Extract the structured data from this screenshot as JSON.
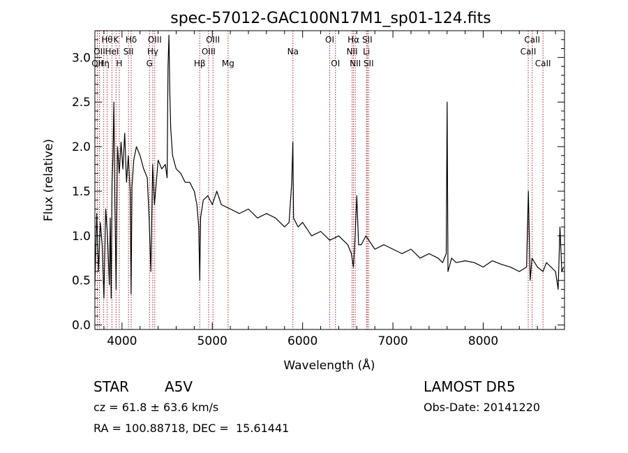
{
  "chart_data": {
    "type": "line",
    "title": "spec-57012-GAC100N17M1_sp01-124.fits",
    "xlabel": "Wavelength (Å)",
    "ylabel": "Flux (relative)",
    "xlim": [
      3700,
      8900
    ],
    "ylim": [
      -0.05,
      3.3
    ],
    "xticks": [
      4000,
      5000,
      6000,
      7000,
      8000
    ],
    "xtick_labels": [
      "4000",
      "5000",
      "6000",
      "7000",
      "8000"
    ],
    "yticks": [
      0.0,
      0.5,
      1.0,
      1.5,
      2.0,
      2.5,
      3.0
    ],
    "ytick_labels": [
      "0.0",
      "0.5",
      "1.0",
      "1.5",
      "2.0",
      "2.5",
      "3.0"
    ],
    "grid": false,
    "series": [
      {
        "color": "#000000",
        "x": [
          3700,
          3720,
          3740,
          3760,
          3780,
          3800,
          3820,
          3840,
          3860,
          3870,
          3880,
          3890,
          3900,
          3910,
          3920,
          3935,
          3950,
          3970,
          3990,
          4010,
          4030,
          4050,
          4070,
          4090,
          4101,
          4110,
          4130,
          4160,
          4200,
          4240,
          4280,
          4300,
          4320,
          4340,
          4360,
          4400,
          4440,
          4480,
          4500,
          4510,
          4520,
          4530,
          4540,
          4560,
          4600,
          4650,
          4700,
          4750,
          4800,
          4830,
          4850,
          4861,
          4870,
          4900,
          4950,
          5000,
          5050,
          5100,
          5200,
          5300,
          5400,
          5500,
          5600,
          5700,
          5800,
          5850,
          5880,
          5892,
          5900,
          5950,
          6000,
          6100,
          6200,
          6300,
          6400,
          6500,
          6540,
          6563,
          6580,
          6600,
          6620,
          6650,
          6700,
          6800,
          6900,
          7000,
          7100,
          7200,
          7300,
          7400,
          7500,
          7550,
          7590,
          7600,
          7610,
          7650,
          7700,
          7800,
          7900,
          8000,
          8100,
          8200,
          8300,
          8400,
          8480,
          8500,
          8520,
          8540,
          8600,
          8662,
          8700,
          8750,
          8800,
          8830,
          8850,
          8870,
          8890
        ],
        "y": [
          0.45,
          1.25,
          0.6,
          1.15,
          0.9,
          0.3,
          1.3,
          1.0,
          0.45,
          1.2,
          0.3,
          1.6,
          1.9,
          2.5,
          1.45,
          0.4,
          2.0,
          1.7,
          2.05,
          1.75,
          2.15,
          1.6,
          1.9,
          1.5,
          0.35,
          1.55,
          1.85,
          2.0,
          1.9,
          1.75,
          1.65,
          1.2,
          0.6,
          1.8,
          1.35,
          1.85,
          1.75,
          1.8,
          1.65,
          2.9,
          3.25,
          2.6,
          2.2,
          1.9,
          1.75,
          1.7,
          1.6,
          1.6,
          1.5,
          1.35,
          1.1,
          0.5,
          1.2,
          1.4,
          1.45,
          1.35,
          1.5,
          1.35,
          1.3,
          1.25,
          1.3,
          1.2,
          1.25,
          1.2,
          1.1,
          1.15,
          1.6,
          2.05,
          1.2,
          1.1,
          1.15,
          1.0,
          1.05,
          0.95,
          1.0,
          0.9,
          0.8,
          0.65,
          0.95,
          1.45,
          0.9,
          0.9,
          1.0,
          0.85,
          0.9,
          0.85,
          0.8,
          0.85,
          0.75,
          0.8,
          0.75,
          0.7,
          0.8,
          2.5,
          0.6,
          0.75,
          0.7,
          0.72,
          0.7,
          0.65,
          0.72,
          0.68,
          0.65,
          0.6,
          0.65,
          1.5,
          0.5,
          0.75,
          0.65,
          0.6,
          0.7,
          0.65,
          0.6,
          0.4,
          1.1,
          0.6,
          0.65
        ]
      }
    ],
    "line_labels": [
      {
        "x": 3727,
        "row": 2,
        "text": "OII"
      },
      {
        "x": 3750,
        "row": 1,
        "text": "OII"
      },
      {
        "x": 3798,
        "row": 2,
        "text": "Hη"
      },
      {
        "x": 3835,
        "row": 0,
        "text": "Hθ"
      },
      {
        "x": 3889,
        "row": 1,
        "text": "HeI"
      },
      {
        "x": 3934,
        "row": 0,
        "text": "K"
      },
      {
        "x": 3970,
        "row": 2,
        "text": "H"
      },
      {
        "x": 4072,
        "row": 1,
        "text": "SII"
      },
      {
        "x": 4102,
        "row": 0,
        "text": "Hδ"
      },
      {
        "x": 4305,
        "row": 2,
        "text": "G"
      },
      {
        "x": 4341,
        "row": 1,
        "text": "Hγ"
      },
      {
        "x": 4363,
        "row": 0,
        "text": "OIII"
      },
      {
        "x": 4861,
        "row": 2,
        "text": "Hβ"
      },
      {
        "x": 4959,
        "row": 1,
        "text": "OIII"
      },
      {
        "x": 5007,
        "row": 0,
        "text": "OIII"
      },
      {
        "x": 5175,
        "row": 2,
        "text": "Mg"
      },
      {
        "x": 5893,
        "row": 1,
        "text": "Na"
      },
      {
        "x": 6300,
        "row": 0,
        "text": "OI"
      },
      {
        "x": 6364,
        "row": 2,
        "text": "OI"
      },
      {
        "x": 6548,
        "row": 1,
        "text": "NII"
      },
      {
        "x": 6563,
        "row": 0,
        "text": "Hα"
      },
      {
        "x": 6583,
        "row": 2,
        "text": "NII"
      },
      {
        "x": 6707,
        "row": 1,
        "text": "Li"
      },
      {
        "x": 6716,
        "row": 0,
        "text": "SII"
      },
      {
        "x": 6731,
        "row": 2,
        "text": "SII"
      },
      {
        "x": 8498,
        "row": 1,
        "text": "CaII"
      },
      {
        "x": 8542,
        "row": 0,
        "text": "CaII"
      },
      {
        "x": 8662,
        "row": 2,
        "text": "CaII"
      }
    ]
  },
  "footer": {
    "object_class": "STAR",
    "subclass": "A5V",
    "cz": "cz = 61.8 ± 63.6 km/s",
    "coords": "RA = 100.88718, DEC =  15.61441",
    "survey": "LAMOST DR5",
    "obs_date": "Obs-Date: 20141220"
  }
}
